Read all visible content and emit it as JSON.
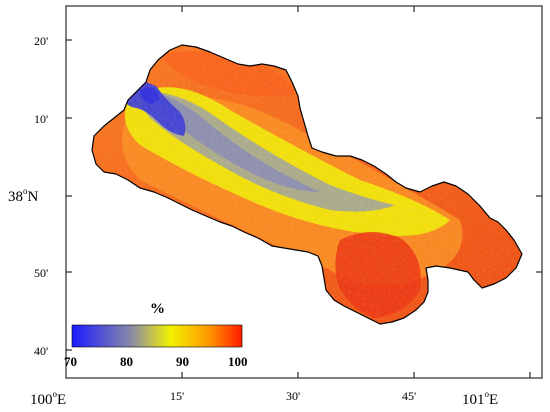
{
  "map": {
    "x_ticks": [
      {
        "value": "100",
        "sup": "o",
        "suffix": "E"
      },
      {
        "value": "15'"
      },
      {
        "value": "30'"
      },
      {
        "value": "45'"
      },
      {
        "value": "101",
        "sup": "o",
        "suffix": "E"
      }
    ],
    "y_ticks": [
      {
        "value": "20'"
      },
      {
        "value": "10'"
      },
      {
        "value": "38",
        "sup": "o",
        "suffix": "N"
      },
      {
        "value": "50'"
      },
      {
        "value": "40'"
      }
    ],
    "colorbar": {
      "title": "%",
      "labels": [
        "70",
        "80",
        "90",
        "100"
      ],
      "colors": [
        "#1a1aff",
        "#8a8aa6",
        "#f2f200",
        "#ff9a00",
        "#ff1a00"
      ]
    },
    "colors": {
      "edge": "#f03c0a",
      "mid": "#ff9a1a",
      "yellow": "#e8e800",
      "grey": "#9a9ab0",
      "blue": "#3030d8",
      "outline": "#000000"
    }
  }
}
